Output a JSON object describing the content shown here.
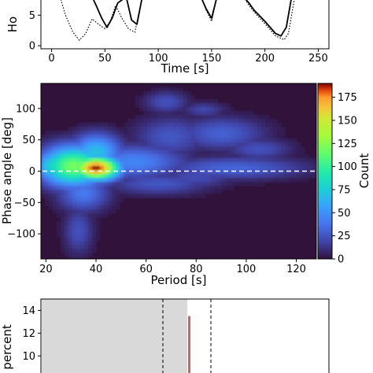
{
  "chart_data": [
    {
      "type": "line",
      "panel": "top",
      "xlabel": "Time [s]",
      "ylabel": "Ho",
      "xlim": [
        -10,
        260
      ],
      "ylim": [
        -0.5,
        8
      ],
      "x_ticks": [
        0,
        50,
        100,
        150,
        200,
        250
      ],
      "y_ticks": [
        0,
        5
      ],
      "grid": false,
      "series": [
        {
          "style": "solid",
          "x": [
            38,
            42,
            47,
            52,
            57,
            62,
            70,
            75,
            80,
            85,
            140,
            145,
            150,
            155,
            180,
            185,
            190,
            200,
            210,
            215,
            220,
            225
          ],
          "y": [
            8,
            6.5,
            4.5,
            3.0,
            4.6,
            7,
            8,
            4.2,
            3.5,
            8,
            8,
            6.0,
            4.5,
            8,
            8,
            7.0,
            5.8,
            4.0,
            2.0,
            1.6,
            3.0,
            8
          ]
        },
        {
          "style": "dotted",
          "x": [
            8,
            13,
            20,
            26,
            32,
            38,
            44,
            50,
            55,
            60,
            66,
            72,
            78,
            85,
            140,
            145,
            150,
            155,
            180,
            185,
            190,
            200,
            210,
            218,
            222,
            228
          ],
          "y": [
            8,
            5.0,
            2.2,
            0.9,
            2.0,
            4.4,
            3.5,
            2.8,
            4.0,
            6.6,
            4.5,
            2.8,
            2.2,
            8,
            8,
            5.8,
            4.0,
            8,
            8,
            6.6,
            5.5,
            3.6,
            1.6,
            1.0,
            2.0,
            8
          ]
        }
      ]
    },
    {
      "type": "heatmap",
      "panel": "middle",
      "xlabel": "Period [s]",
      "ylabel": "Phase angle [deg]",
      "xlim": [
        18,
        128
      ],
      "ylim": [
        -140,
        140
      ],
      "x_ticks": [
        20,
        40,
        60,
        80,
        100,
        120
      ],
      "y_ticks": [
        100,
        50,
        0,
        -50,
        -100
      ],
      "colorbar": {
        "label": "Count",
        "range": [
          0,
          190
        ],
        "ticks": [
          0,
          25,
          50,
          75,
          100,
          125,
          150,
          175
        ]
      },
      "reference_line": {
        "y": 0,
        "style": "dashed",
        "color": "#ffffff"
      },
      "blobs": [
        {
          "x": 40,
          "y": 5,
          "sx": 6.5,
          "sy": 13,
          "count": 190
        },
        {
          "x": 31,
          "y": 8,
          "sx": 9,
          "sy": 22,
          "count": 120
        },
        {
          "x": 40,
          "y": 30,
          "sx": 7,
          "sy": 20,
          "count": 70
        },
        {
          "x": 22,
          "y": 8,
          "sx": 4,
          "sy": 18,
          "count": 80
        },
        {
          "x": 55,
          "y": 15,
          "sx": 14,
          "sy": 18,
          "count": 45
        },
        {
          "x": 35,
          "y": -35,
          "sx": 7,
          "sy": 20,
          "count": 40
        },
        {
          "x": 33,
          "y": -95,
          "sx": 4,
          "sy": 26,
          "count": 24
        },
        {
          "x": 70,
          "y": 55,
          "sx": 10,
          "sy": 22,
          "count": 26
        },
        {
          "x": 68,
          "y": 110,
          "sx": 6,
          "sy": 12,
          "count": 24
        },
        {
          "x": 90,
          "y": 60,
          "sx": 12,
          "sy": 18,
          "count": 30
        },
        {
          "x": 105,
          "y": 35,
          "sx": 9,
          "sy": 12,
          "count": 24
        },
        {
          "x": 95,
          "y": 5,
          "sx": 20,
          "sy": 12,
          "count": 32
        },
        {
          "x": 65,
          "y": -20,
          "sx": 14,
          "sy": 12,
          "count": 26
        },
        {
          "x": 80,
          "y": -10,
          "sx": 10,
          "sy": 12,
          "count": 22
        },
        {
          "x": 83,
          "y": 98,
          "sx": 6,
          "sy": 8,
          "count": 20
        }
      ]
    },
    {
      "type": "bar",
      "panel": "bottom",
      "ylabel": "percent",
      "ylim": [
        8.5,
        15
      ],
      "y_ticks": [
        14,
        12,
        10
      ],
      "shaded_region": {
        "color": "#d9d9d9"
      },
      "bars": [
        {
          "value": 13.5,
          "color": "#c86464"
        }
      ],
      "dashed_lines": 2
    }
  ]
}
